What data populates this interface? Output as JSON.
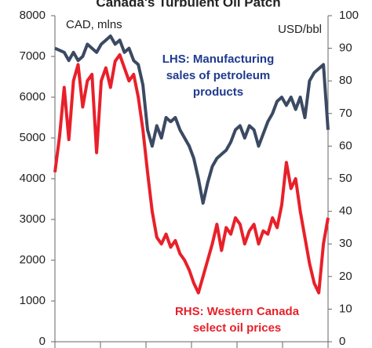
{
  "chart_data": {
    "type": "line",
    "title": "Canada's Turbulent Oil Patch",
    "ylabel": "CAD, mlns",
    "y2label": "USD/bbl",
    "categories": [
      null,
      null,
      null,
      null,
      null,
      null,
      null,
      null,
      null,
      null,
      null,
      null,
      null,
      null,
      null,
      null,
      null,
      null,
      null,
      null,
      null,
      null,
      null,
      null,
      null,
      null,
      null,
      null,
      null,
      null,
      null,
      null,
      null,
      null,
      null,
      null,
      null,
      null,
      null,
      null,
      null,
      null,
      null,
      null,
      null,
      null,
      null,
      null,
      null,
      null,
      null,
      null,
      null,
      null,
      null,
      null,
      null,
      null,
      null,
      null
    ],
    "series": [
      {
        "color": "#3b4a62",
        "axis": "y",
        "values": [
          7200,
          7150,
          7100,
          6900,
          7100,
          6900,
          7000,
          7300,
          7200,
          7100,
          7300,
          7400,
          7500,
          7300,
          7400,
          7100,
          7200,
          6900,
          6800,
          6300,
          5200,
          4800,
          5300,
          5000,
          5500,
          5400,
          5500,
          5200,
          5000,
          4800,
          4500,
          4000,
          3400,
          3900,
          4300,
          4500,
          4600,
          4700,
          4900,
          5200,
          5300,
          5000,
          5300,
          5200,
          4800,
          5100,
          5400,
          5600,
          5900,
          6000,
          5800,
          6000,
          5700,
          6000,
          5500,
          6400,
          6600,
          6700,
          6800,
          5200
        ]
      },
      {
        "color": "#e8202a",
        "axis": "y2",
        "values": [
          52,
          63,
          78,
          62,
          80,
          85,
          72,
          80,
          82,
          58,
          80,
          84,
          78,
          86,
          88,
          84,
          80,
          82,
          75,
          65,
          52,
          40,
          32,
          30,
          33,
          29,
          31,
          27,
          25,
          22,
          18,
          15,
          20,
          25,
          30,
          36,
          28,
          35,
          33,
          38,
          36,
          30,
          34,
          36,
          30,
          34,
          33,
          38,
          35,
          42,
          55,
          47,
          50,
          40,
          32,
          24,
          18,
          15,
          30,
          38
        ]
      }
    ],
    "annotations": [
      {
        "color": "#1f3a8f",
        "lines": [
          "LHS: Manufacturing",
          "sales of petroleum",
          "products"
        ]
      },
      {
        "color": "#e8202a",
        "lines": [
          "RHS: Western Canada",
          "select oil prices"
        ]
      }
    ],
    "ylim": [
      0,
      8000
    ],
    "yticks": [
      0,
      1000,
      2000,
      3000,
      4000,
      5000,
      6000,
      7000,
      8000
    ],
    "y2lim": [
      0,
      100
    ],
    "y2ticks": [
      0,
      10,
      20,
      30,
      40,
      50,
      60,
      70,
      80,
      90,
      100
    ]
  }
}
